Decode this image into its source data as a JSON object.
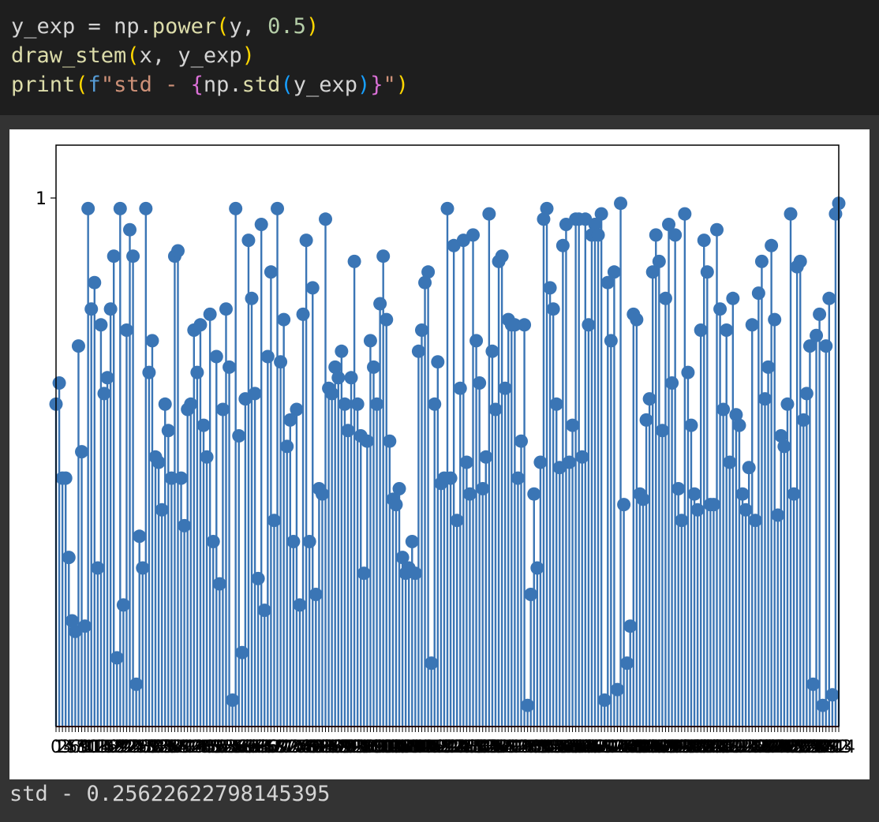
{
  "code": {
    "line1": {
      "var": "y_exp",
      "eq": " = ",
      "obj": "np.",
      "func": "power",
      "open": "(",
      "arg1": "y, ",
      "num": "0.5",
      "close": ")"
    },
    "line2": {
      "func": "draw_stem",
      "open": "(",
      "args": "x, y_exp",
      "close": ")"
    },
    "line3": {
      "func": "print",
      "open": "(",
      "prefix": "f",
      "str_start": "\"std - ",
      "brace_open": "{",
      "expr_obj": "np.",
      "expr_func": "std",
      "expr_open": "(",
      "expr_arg": "y_exp",
      "expr_close": ")",
      "brace_close": "}",
      "str_end": "\"",
      "close": ")"
    }
  },
  "output": {
    "text": "std - 0.25622622798145395"
  },
  "chart_data": {
    "type": "stem",
    "stem_color": "#3a75b5",
    "baseline_color": "#c0392b",
    "ylim": [
      0,
      1.1
    ],
    "ytick_labels": [
      {
        "value": 1,
        "label": "1"
      }
    ],
    "x_tick_label_note": "overlapping",
    "x_start": 0,
    "values": [
      0.61,
      0.65,
      0.47,
      0.47,
      0.32,
      0.2,
      0.18,
      0.72,
      0.52,
      0.19,
      0.98,
      0.79,
      0.84,
      0.3,
      0.76,
      0.63,
      0.66,
      0.79,
      0.89,
      0.13,
      0.98,
      0.23,
      0.75,
      0.94,
      0.89,
      0.08,
      0.36,
      0.3,
      0.98,
      0.67,
      0.73,
      0.51,
      0.5,
      0.41,
      0.61,
      0.56,
      0.47,
      0.89,
      0.9,
      0.47,
      0.38,
      0.6,
      0.61,
      0.75,
      0.67,
      0.76,
      0.57,
      0.51,
      0.78,
      0.35,
      0.7,
      0.27,
      0.6,
      0.79,
      0.68,
      0.05,
      0.98,
      0.55,
      0.14,
      0.62,
      0.92,
      0.81,
      0.63,
      0.28,
      0.95,
      0.22,
      0.7,
      0.86,
      0.39,
      0.98,
      0.69,
      0.77,
      0.53,
      0.58,
      0.35,
      0.6,
      0.23,
      0.78,
      0.92,
      0.35,
      0.83,
      0.25,
      0.45,
      0.44,
      0.96,
      0.64,
      0.63,
      0.68,
      0.66,
      0.71,
      0.61,
      0.56,
      0.66,
      0.88,
      0.61,
      0.55,
      0.29,
      0.54,
      0.73,
      0.68,
      0.61,
      0.8,
      0.89,
      0.77,
      0.54,
      0.43,
      0.42,
      0.45,
      0.32,
      0.29,
      0.3,
      0.35,
      0.29,
      0.71,
      0.75,
      0.84,
      0.86,
      0.12,
      0.61,
      0.69,
      0.46,
      0.47,
      0.98,
      0.47,
      0.91,
      0.39,
      0.64,
      0.92,
      0.5,
      0.44,
      0.93,
      0.73,
      0.65,
      0.45,
      0.51,
      0.97,
      0.71,
      0.6,
      0.88,
      0.89,
      0.64,
      0.77,
      0.76,
      0.76,
      0.47,
      0.54,
      0.76,
      0.04,
      0.25,
      0.44,
      0.3,
      0.5,
      0.96,
      0.98,
      0.83,
      0.79,
      0.61,
      0.49,
      0.91,
      0.95,
      0.5,
      0.57,
      0.96,
      0.96,
      0.51,
      0.96,
      0.76,
      0.93,
      0.95,
      0.93,
      0.97,
      0.05,
      0.84,
      0.73,
      0.86,
      0.07,
      0.99,
      0.42,
      0.12,
      0.19,
      0.78,
      0.77,
      0.44,
      0.43,
      0.58,
      0.62,
      0.86,
      0.93,
      0.88,
      0.56,
      0.81,
      0.95,
      0.65,
      0.93,
      0.45,
      0.39,
      0.97,
      0.67,
      0.57,
      0.44,
      0.41,
      0.75,
      0.92,
      0.86,
      0.42,
      0.42,
      0.94,
      0.79,
      0.6,
      0.75,
      0.5,
      0.81,
      0.59,
      0.57,
      0.44,
      0.41,
      0.49,
      0.76,
      0.39,
      0.82,
      0.88,
      0.62,
      0.68,
      0.91,
      0.77,
      0.4,
      0.55,
      0.53,
      0.61,
      0.97,
      0.44,
      0.87,
      0.88,
      0.58,
      0.63,
      0.72,
      0.08,
      0.74,
      0.78,
      0.04,
      0.72,
      0.81,
      0.06,
      0.97,
      0.99
    ]
  }
}
